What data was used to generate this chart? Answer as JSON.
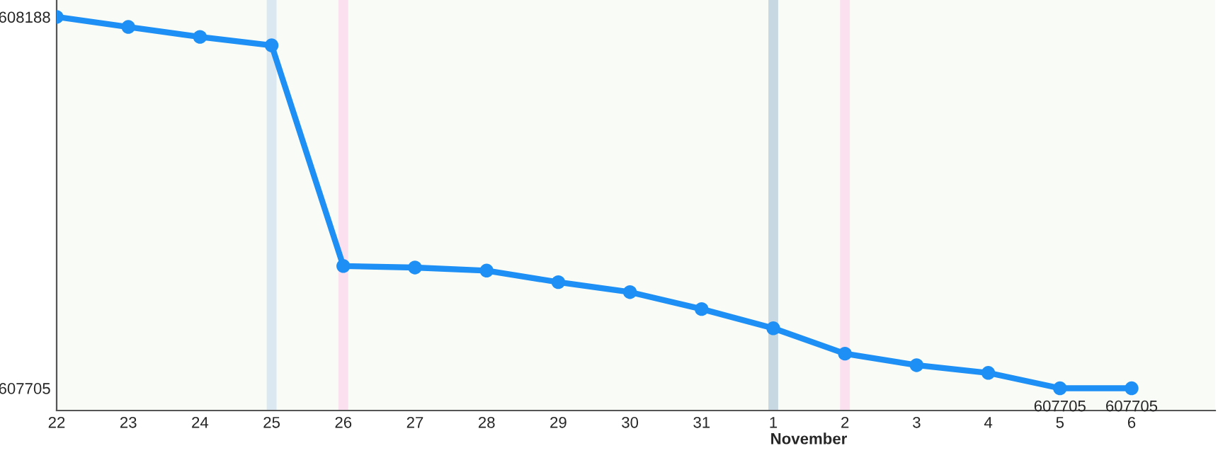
{
  "chart_data": {
    "type": "line",
    "categories": [
      "22",
      "23",
      "24",
      "25",
      "26",
      "27",
      "28",
      "29",
      "30",
      "31",
      "1",
      "2",
      "3",
      "4",
      "5",
      "6"
    ],
    "series": [
      {
        "color": "#1e8ff5",
        "values": [
          608188,
          608175,
          608162,
          608151,
          607864,
          607862,
          607858,
          607843,
          607830,
          607808,
          607783,
          607750,
          607735,
          607725,
          607705,
          607705
        ],
        "value_labels": [
          null,
          null,
          null,
          null,
          null,
          null,
          null,
          null,
          null,
          null,
          null,
          null,
          null,
          null,
          "607705",
          "607705"
        ]
      }
    ],
    "ylim": [
      607676,
      608210
    ],
    "yticks": [
      607705,
      608188
    ],
    "grid": false,
    "marker": "circle",
    "line_style": "solid",
    "ref_lines": [
      {
        "axis": "x",
        "value": "25",
        "color": "#dbe8f2"
      },
      {
        "axis": "x",
        "value": "26",
        "color": "#fbe1ef"
      },
      {
        "axis": "x",
        "value": "1",
        "color": "#c8d8e2"
      },
      {
        "axis": "x",
        "value": "2",
        "color": "#fbe1ef"
      }
    ],
    "annotations": [
      "November"
    ]
  }
}
